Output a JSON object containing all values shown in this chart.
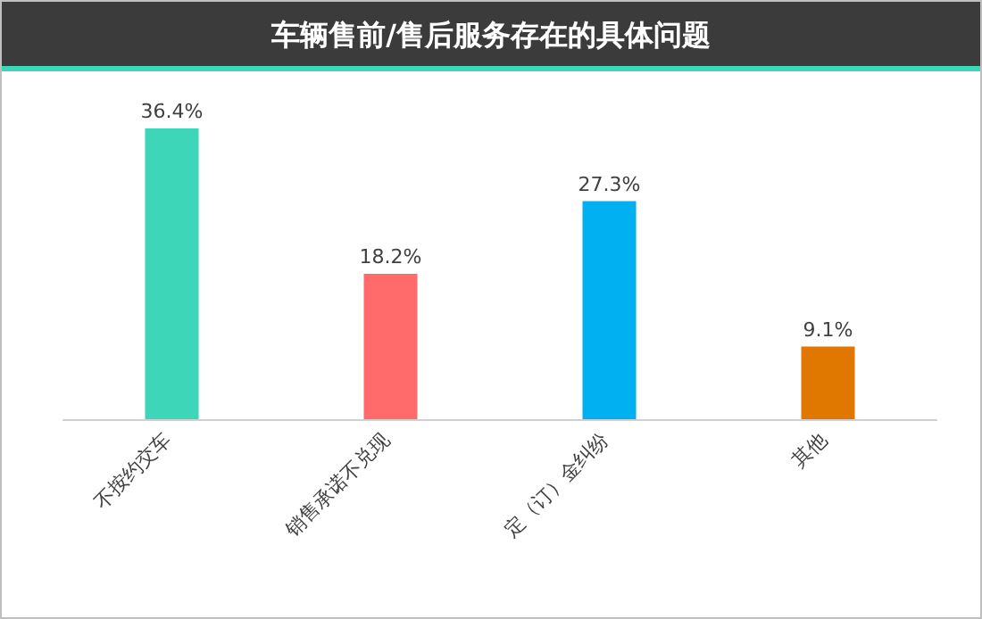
{
  "chart_data": {
    "type": "bar",
    "title": "车辆售前/售后服务存在的具体问题",
    "categories": [
      "不按约交车",
      "销售承诺不兑现",
      "定（订）金纠纷",
      "其他"
    ],
    "values": [
      36.4,
      18.2,
      27.3,
      9.1
    ],
    "colors": [
      "#3dd6b8",
      "#ff6a6a",
      "#00b0f0",
      "#e07800"
    ],
    "value_labels": [
      "36.4%",
      "18.2%",
      "27.3%",
      "9.1%"
    ]
  }
}
